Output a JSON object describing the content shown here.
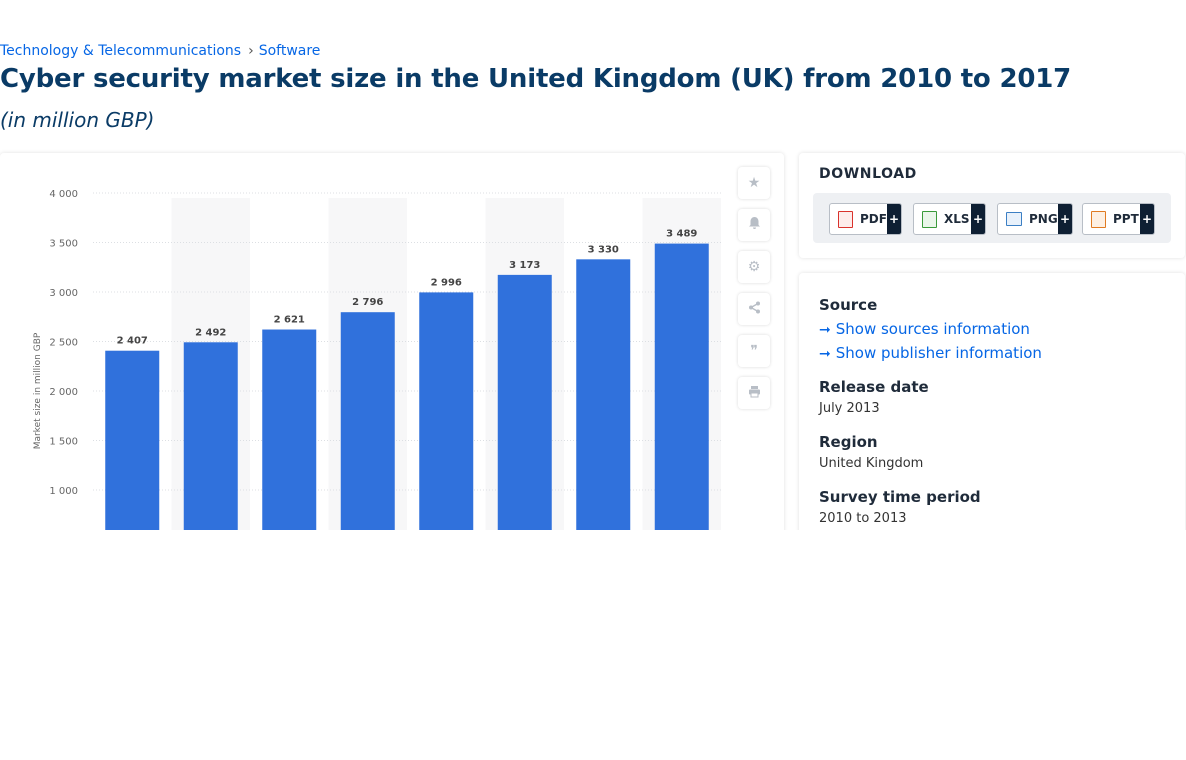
{
  "breadcrumb": {
    "category": "Technology & Telecommunications",
    "subcategory": "Software",
    "separator": "›"
  },
  "page": {
    "title": "Cyber security market size in the United Kingdom (UK) from 2010 to 2017",
    "subtitle": "(in million GBP)"
  },
  "colors": {
    "bar": "#3071dc",
    "brand_dark": "#0a3b66",
    "link": "#0666e5",
    "plus_bg": "#0e1f33"
  },
  "chart_data": {
    "type": "bar",
    "ylabel": "Market size in million GBP",
    "xlabel": "",
    "ylim": [
      1000,
      4000
    ],
    "yticks": [
      1000,
      1500,
      2000,
      2500,
      3000,
      3500,
      4000
    ],
    "ytick_labels": [
      "1 000",
      "1 500",
      "2 000",
      "2 500",
      "3 000",
      "3 500",
      "4 000"
    ],
    "values": [
      2407,
      2492,
      2621,
      2796,
      2996,
      3173,
      3330,
      3489
    ],
    "value_labels": [
      "2 407",
      "2 492",
      "2 621",
      "2 796",
      "2 996",
      "3 173",
      "3 330",
      "3 489"
    ],
    "grid": true,
    "alternating_column_shading": true
  },
  "tools": [
    {
      "name": "favorite",
      "icon": "star-icon",
      "glyph": "★"
    },
    {
      "name": "notification",
      "icon": "bell-icon",
      "glyph": "🔔"
    },
    {
      "name": "settings",
      "icon": "gear-icon",
      "glyph": "⚙"
    },
    {
      "name": "share",
      "icon": "share-icon",
      "glyph": "⋖"
    },
    {
      "name": "cite",
      "icon": "quote-icon",
      "glyph": "❞"
    },
    {
      "name": "print",
      "icon": "print-icon",
      "glyph": "⎙"
    }
  ],
  "download": {
    "title": "DOWNLOAD",
    "buttons": [
      {
        "label": "PDF",
        "plus": "+",
        "icon": "pdf-file-icon",
        "icon_color": "#d9322c"
      },
      {
        "label": "XLS",
        "plus": "+",
        "icon": "xls-file-icon",
        "icon_color": "#3a9a3a"
      },
      {
        "label": "PNG",
        "plus": "+",
        "icon": "png-file-icon",
        "icon_color": "#3b7fc4"
      },
      {
        "label": "PPT",
        "plus": "+",
        "icon": "ppt-file-icon",
        "icon_color": "#e07b22"
      }
    ]
  },
  "info": {
    "source_label": "Source",
    "show_sources": "Show sources information",
    "show_publisher": "Show publisher information",
    "release_label": "Release date",
    "release_value": "July 2013",
    "region_label": "Region",
    "region_value": "United Kingdom",
    "survey_label": "Survey time period",
    "survey_value": "2010 to 2013"
  }
}
